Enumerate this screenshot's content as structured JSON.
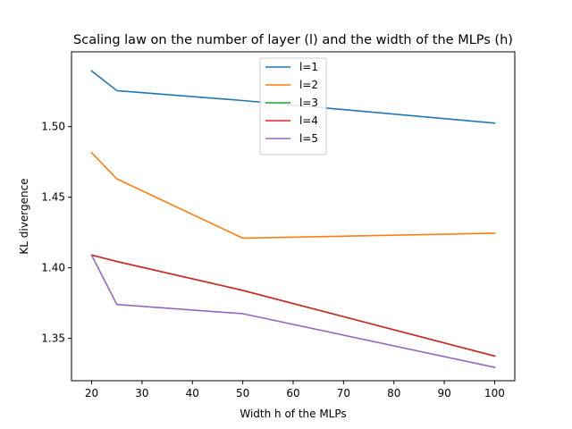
{
  "chart_data": {
    "type": "line",
    "title": "Scaling law on the number of layer (l) and the width of the MLPs (h)",
    "xlabel": "Width h of the MLPs",
    "ylabel": "KL divergence",
    "xlim": [
      16,
      104
    ],
    "ylim": [
      1.32,
      1.553
    ],
    "xticks": [
      20,
      30,
      40,
      50,
      60,
      70,
      80,
      90,
      100
    ],
    "yticks": [
      1.35,
      1.4,
      1.45,
      1.5
    ],
    "ytick_labels": [
      "1.35",
      "1.40",
      "1.45",
      "1.50"
    ],
    "grid": false,
    "legend_position": "top-center",
    "series": [
      {
        "name": "l=1",
        "color": "#1f77b4",
        "x": [
          20,
          25,
          50,
          100
        ],
        "y": [
          1.5395,
          1.5255,
          1.5185,
          1.5025
        ]
      },
      {
        "name": "l=2",
        "color": "#ff7f0e",
        "x": [
          20,
          25,
          50,
          100
        ],
        "y": [
          1.4815,
          1.463,
          1.421,
          1.4245
        ]
      },
      {
        "name": "l=3",
        "color": "#2ca02c",
        "x": [
          20,
          25,
          50,
          100
        ],
        "y": [
          1.409,
          1.4045,
          1.384,
          1.3375
        ]
      },
      {
        "name": "l=4",
        "color": "#d62728",
        "x": [
          20,
          25,
          50,
          100
        ],
        "y": [
          1.409,
          1.4045,
          1.384,
          1.3375
        ]
      },
      {
        "name": "l=5",
        "color": "#9467bd",
        "x": [
          20,
          25,
          50,
          100
        ],
        "y": [
          1.409,
          1.374,
          1.3675,
          1.3295
        ]
      }
    ]
  }
}
